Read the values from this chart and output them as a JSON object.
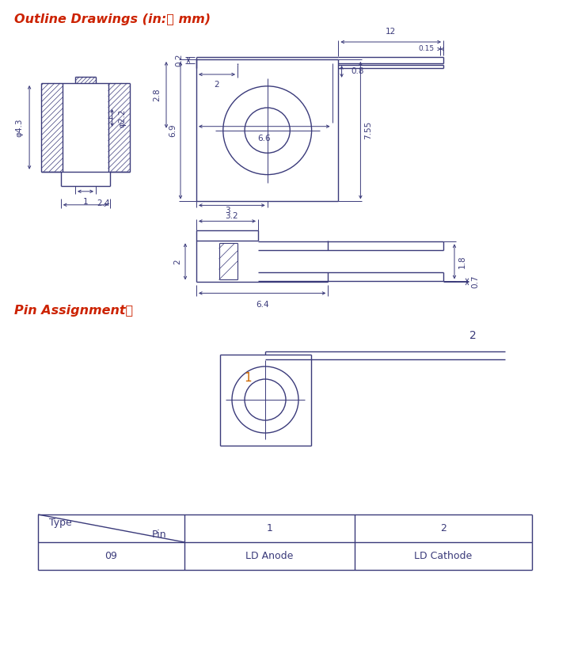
{
  "title": "Outline Drawings (in:　 mm)",
  "pin_assignment_title": "Pin Assignment：",
  "bg_color": "#ffffff",
  "line_color": "#3a3a7a",
  "dim_color": "#3a3a7a",
  "title_color": "#cc2200",
  "orange_color": "#cc6600",
  "table_data": {
    "type_val": "09",
    "pin1": "LD Anode",
    "pin2": "LD Cathode"
  }
}
